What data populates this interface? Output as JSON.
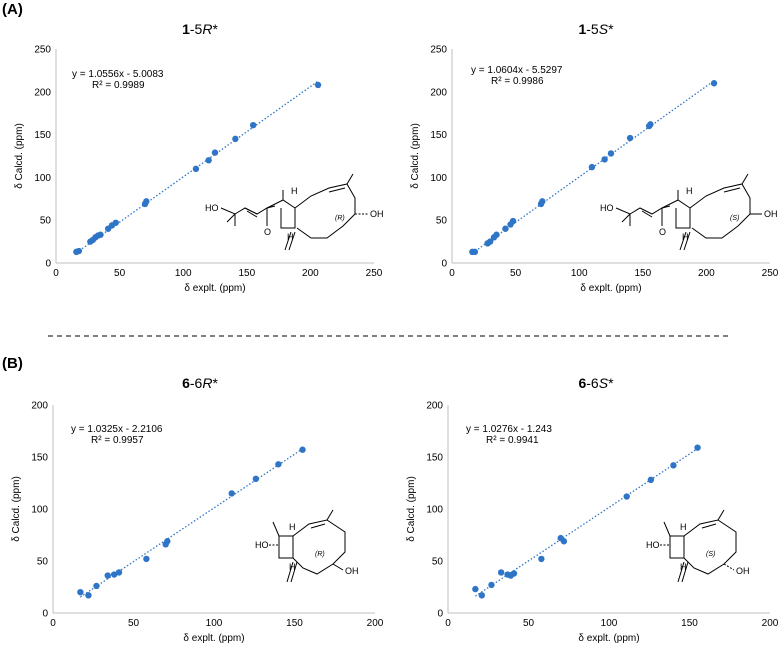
{
  "panels": [
    {
      "label": "(A)"
    },
    {
      "label": "(B)"
    }
  ],
  "chart_data": [
    {
      "type": "scatter",
      "title_bold": "1",
      "title_rest": "-5",
      "title_italic": "R",
      "title_suffix": "*",
      "xlabel": "δ explt. (ppm)",
      "ylabel": "δ Calcd. (ppm)",
      "xlim": [
        0,
        250
      ],
      "ylim": [
        0,
        250
      ],
      "xticks": [
        0,
        50,
        100,
        150,
        200,
        250
      ],
      "yticks": [
        0,
        50,
        100,
        150,
        200,
        250
      ],
      "equation": "y = 1.0556x - 5.0083",
      "r2": "R² = 0.9989",
      "trendline": {
        "slope": 1.0556,
        "intercept": -5.0083,
        "x_range": [
          16,
          206
        ]
      },
      "point_color": "#2e75c7",
      "stereo_label": "(R)",
      "x": [
        16,
        18,
        27,
        29,
        31,
        33,
        35,
        41,
        44,
        47,
        70,
        71,
        110,
        120,
        125,
        141,
        155,
        206
      ],
      "y": [
        13,
        14,
        25,
        27,
        30,
        32,
        33,
        40,
        44,
        47,
        69,
        72,
        110,
        120,
        129,
        145,
        161,
        208
      ]
    },
    {
      "type": "scatter",
      "title_bold": "1",
      "title_rest": "-5",
      "title_italic": "S",
      "title_suffix": "*",
      "xlabel": "δ explt. (ppm)",
      "ylabel": "δ Calcd. (ppm)",
      "xlim": [
        0,
        250
      ],
      "ylim": [
        0,
        250
      ],
      "xticks": [
        0,
        50,
        100,
        150,
        200,
        250
      ],
      "yticks": [
        0,
        50,
        100,
        150,
        200,
        250
      ],
      "equation": "y = 1.0604x - 5.5297",
      "r2": "R² = 0.9986",
      "trendline": {
        "slope": 1.0604,
        "intercept": -5.5297,
        "x_range": [
          16,
          206
        ]
      },
      "point_color": "#2e75c7",
      "stereo_label": "(S)",
      "x": [
        16,
        18,
        28,
        30,
        33,
        35,
        42,
        46,
        48,
        70,
        71,
        110,
        120,
        125,
        140,
        155,
        156,
        206
      ],
      "y": [
        13,
        13,
        23,
        25,
        30,
        33,
        40,
        45,
        49,
        69,
        72,
        112,
        121,
        128,
        146,
        160,
        162,
        210
      ]
    },
    {
      "type": "scatter",
      "title_bold": "6",
      "title_rest": "-6",
      "title_italic": "R",
      "title_suffix": "*",
      "xlabel": "δ explt. (ppm)",
      "ylabel": "δ Calcd. (ppm)",
      "xlim": [
        0,
        200
      ],
      "ylim": [
        0,
        200
      ],
      "xticks": [
        0,
        50,
        100,
        150,
        200
      ],
      "yticks": [
        0,
        50,
        100,
        150,
        200
      ],
      "equation": "y = 1.0325x - 2.2106",
      "r2": "R² = 0.9957",
      "trendline": {
        "slope": 1.0325,
        "intercept": -2.2106,
        "x_range": [
          17,
          155
        ]
      },
      "point_color": "#2e75c7",
      "stereo_label": "(R)",
      "x": [
        17,
        22,
        27,
        34,
        38,
        41,
        58,
        70,
        71,
        111,
        126,
        140,
        155
      ],
      "y": [
        20,
        17,
        26,
        36,
        37,
        39,
        52,
        66,
        69,
        115,
        129,
        143,
        157
      ]
    },
    {
      "type": "scatter",
      "title_bold": "6",
      "title_rest": "-6",
      "title_italic": "S",
      "title_suffix": "*",
      "xlabel": "δ explt. (ppm)",
      "ylabel": "δ Calcd. (ppm)",
      "xlim": [
        0,
        200
      ],
      "ylim": [
        0,
        200
      ],
      "xticks": [
        0,
        50,
        100,
        150,
        200
      ],
      "yticks": [
        0,
        50,
        100,
        150,
        200
      ],
      "equation": "y = 1.0276x - 1.243",
      "r2": "R² = 0.9941",
      "trendline": {
        "slope": 1.0276,
        "intercept": -1.243,
        "x_range": [
          17,
          155
        ]
      },
      "point_color": "#2e75c7",
      "stereo_label": "(S)",
      "x": [
        17,
        21,
        27,
        33,
        37,
        39,
        41,
        58,
        70,
        72,
        111,
        126,
        140,
        155
      ],
      "y": [
        23,
        17,
        27,
        39,
        37,
        36,
        38,
        52,
        72,
        69,
        112,
        128,
        142,
        159
      ]
    }
  ],
  "molecule_labels": {
    "hydroxyl": "OH",
    "hydroxyl_left": "HO",
    "hydrogen": "H",
    "oxygen": "O"
  }
}
